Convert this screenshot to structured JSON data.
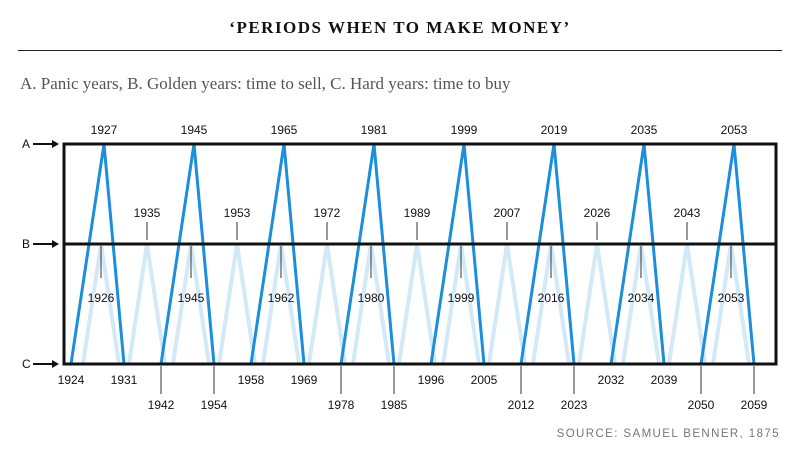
{
  "chart_data": {
    "type": "line",
    "title": "‘PERIODS WHEN TO MAKE MONEY’",
    "subtitle": "A. Panic years, B. Golden years: time to sell, C. Hard years: time to buy",
    "source": "SOURCE: SAMUEL BENNER, 1875",
    "levels": [
      "A",
      "B",
      "C"
    ],
    "panic_cycles": [
      {
        "start": "1924",
        "peak": "1927",
        "end": "1931"
      },
      {
        "start": "1942",
        "peak": "1945",
        "end": "1954"
      },
      {
        "start": "1958",
        "peak": "1965",
        "end": "1969"
      },
      {
        "start": "1978",
        "peak": "1981",
        "end": "1985"
      },
      {
        "start": "1996",
        "peak": "1999",
        "end": "2005"
      },
      {
        "start": "2012",
        "peak": "2019",
        "end": "2023"
      },
      {
        "start": "2032",
        "peak": "2035",
        "end": "2039"
      },
      {
        "start": "2050",
        "peak": "2053",
        "end": "2059"
      }
    ],
    "good_years_top": [
      "1935",
      "1953",
      "1972",
      "1989",
      "2007",
      "2026",
      "2043"
    ],
    "good_years_inner": [
      "1926",
      "1945",
      "1962",
      "1980",
      "1999",
      "2016",
      "2034",
      "2053"
    ],
    "series_colors": {
      "panic": "#1b8fdc",
      "good_times": "#d2e9f8"
    }
  }
}
